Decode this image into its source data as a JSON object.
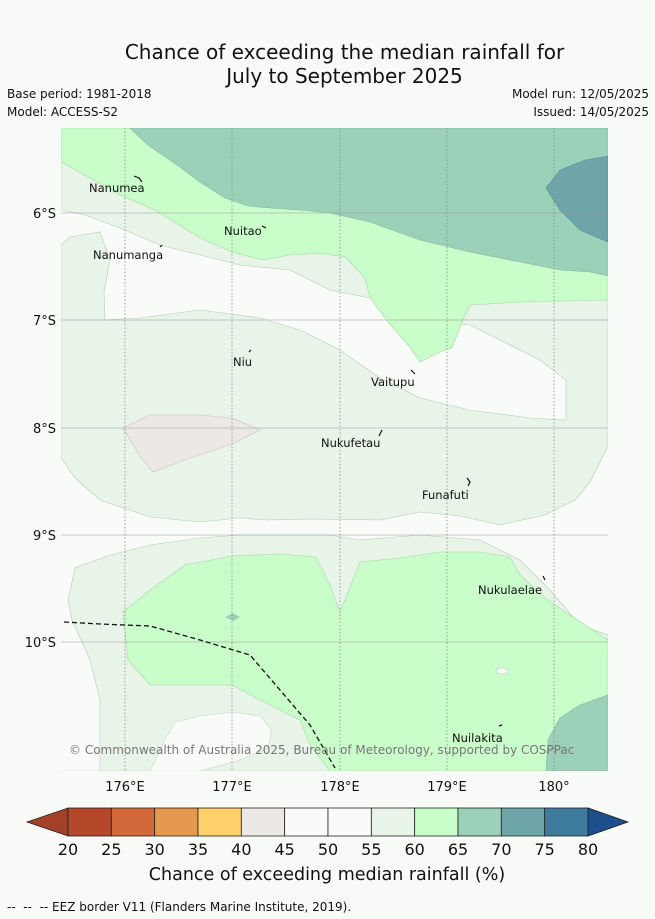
{
  "title_line1": "Chance of exceeding the median rainfall for",
  "title_line2": "July to September 2025",
  "meta": {
    "base_period": "Base period: 1981-2018",
    "model": "Model: ACCESS-S2",
    "model_run": "Model run: 12/05/2025",
    "issued": "Issued: 14/05/2025"
  },
  "map": {
    "lon_ticks": [
      "176°E",
      "177°E",
      "178°E",
      "179°E",
      "180°"
    ],
    "lat_ticks": [
      "6°S",
      "7°S",
      "8°S",
      "9°S",
      "10°S"
    ],
    "places": [
      {
        "name": "Nanumea"
      },
      {
        "name": "Nuitao"
      },
      {
        "name": "Nanumanga"
      },
      {
        "name": "Niu"
      },
      {
        "name": "Vaitupu"
      },
      {
        "name": "Nukufetau"
      },
      {
        "name": "Funafuti"
      },
      {
        "name": "Nukulaelae"
      },
      {
        "name": "Nuilakita"
      }
    ],
    "copyright": "© Commonwealth of Australia 2025, Bureau of Meteorology, supported by COSPPac"
  },
  "colorbar": {
    "ticks": [
      "20",
      "25",
      "30",
      "35",
      "40",
      "45",
      "50",
      "55",
      "60",
      "65",
      "70",
      "75",
      "80"
    ],
    "colors": [
      "#b5482a",
      "#d3683a",
      "#e4994f",
      "#fdd06a",
      "#ece9e5",
      "#f9fbf9",
      "#f9fbf9",
      "#e8f4e8",
      "#c9fdca",
      "#9bd1b8",
      "#6da5a8",
      "#3f7b9d"
    ],
    "under_color": "#a34028",
    "over_color": "#1c4f8c",
    "label": "Chance of exceeding median rainfall (%)"
  },
  "legend": {
    "eez_text": "-- EEZ border V11 (Flanders Marine Institute, 2019)."
  }
}
